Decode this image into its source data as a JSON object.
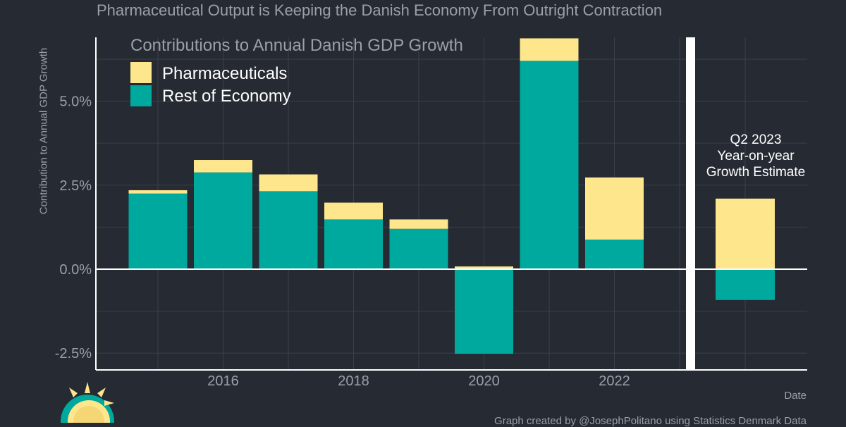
{
  "header": {
    "title": "Pharmaceutical Output is Keeping the Danish Economy From Outright Contraction"
  },
  "footer": {
    "caption": "Graph created by @JosephPolitano using Statistics Denmark Data"
  },
  "colors": {
    "background": "#252a33",
    "pharmaceuticals": "#fde68b",
    "rest_of_economy": "#00a99d",
    "text": "#9ba0a8",
    "grid": "#3a404b",
    "axis": "#ffffff"
  },
  "chart_data": {
    "type": "bar",
    "stacked": true,
    "title": "Contributions to Annual Danish GDP Growth",
    "xlabel": "Date",
    "ylabel": "Contribution to Annual GDP Growth",
    "ylim": [
      -3.0,
      6.9
    ],
    "yticks": [
      -2.5,
      0.0,
      2.5,
      5.0
    ],
    "ytick_labels": [
      "-2.5%",
      "0.0%",
      "2.5%",
      "5.0%"
    ],
    "xticks": [
      2016,
      2018,
      2020,
      2022
    ],
    "xtick_labels": [
      "2016",
      "2018",
      "2020",
      "2022"
    ],
    "categories": [
      2015,
      2016,
      2017,
      2018,
      2019,
      2020,
      2021,
      2022
    ],
    "series": [
      {
        "name": "Rest of Economy",
        "values": [
          2.25,
          2.88,
          2.32,
          1.48,
          1.2,
          -2.52,
          6.2,
          0.88
        ]
      },
      {
        "name": "Pharmaceuticals",
        "values": [
          0.1,
          0.37,
          0.5,
          0.5,
          0.28,
          0.08,
          0.67,
          1.85
        ]
      }
    ],
    "legend": {
      "position": "top-left"
    },
    "grid": true,
    "estimate": {
      "label_lines": [
        "Q2 2023",
        "Year-on-year",
        "Growth Estimate"
      ],
      "rest_of_economy": -0.92,
      "pharmaceuticals": 2.1
    }
  }
}
